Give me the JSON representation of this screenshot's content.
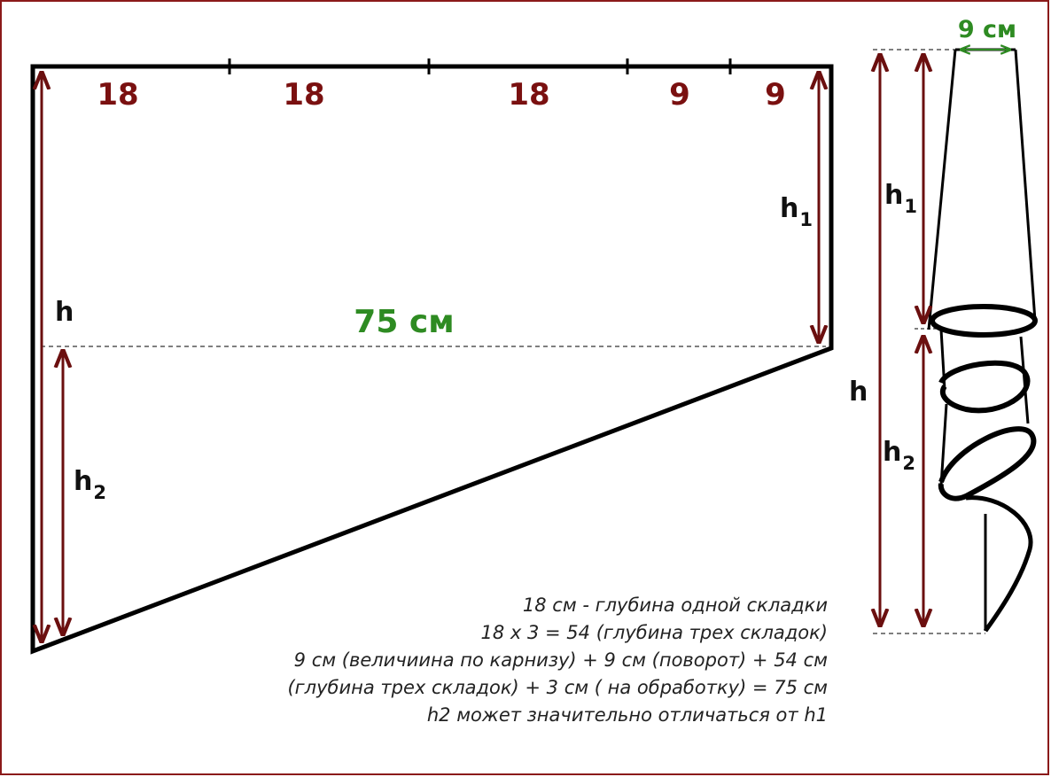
{
  "pattern": {
    "width_label": "75 см",
    "segments": [
      "18",
      "18",
      "18",
      "9",
      "9"
    ],
    "h_label": "h",
    "h1_label": "h",
    "h1_sub": "1",
    "h2_label": "h",
    "h2_sub": "2"
  },
  "side_view": {
    "top_width_label": "9 см",
    "h_label": "h",
    "h1_label": "h",
    "h1_sub": "1",
    "h2_label": "h",
    "h2_sub": "2"
  },
  "notes": [
    "18 см - глубина одной складки",
    "18 х 3 = 54 (глубина трех складок)",
    "9 см (величиина по карнизу) + 9 см (поворот) + 54 см",
    "(глубина трех складок) + 3 см ( на обработку) = 75 см",
    "h2 может значительно отличаться от h1"
  ],
  "colors": {
    "outline": "#000000",
    "dimension_arrows": "#6b0f0f",
    "segment_numbers": "#7a1010",
    "width_label": "#2e8b22",
    "frame_border": "#8b1a1a"
  }
}
